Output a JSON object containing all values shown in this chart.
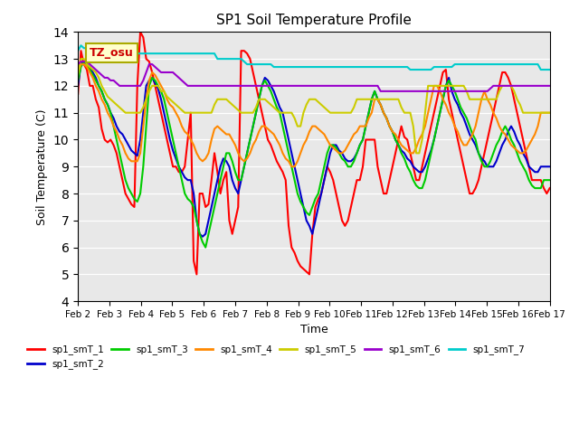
{
  "title": "SP1 Soil Temperature Profile",
  "xlabel": "Time",
  "ylabel": "Soil Temperature (C)",
  "ylim": [
    4.0,
    14.0
  ],
  "yticks": [
    4.0,
    5.0,
    6.0,
    7.0,
    8.0,
    9.0,
    10.0,
    11.0,
    12.0,
    13.0,
    14.0
  ],
  "xtick_labels": [
    "Feb 2",
    "Feb 3",
    "Feb 4",
    "Feb 5",
    "Feb 6",
    "Feb 7",
    "Feb 8",
    "Feb 9",
    "Feb 10",
    "Feb 11",
    "Feb 12",
    "Feb 13",
    "Feb 14",
    "Feb 15",
    "Feb 16",
    "Feb 17"
  ],
  "annotation_text": "TZ_osu",
  "annotation_color": "#cc0000",
  "annotation_bg": "#ffffcc",
  "annotation_border": "#aaaa00",
  "colors": {
    "sp1_smT_1": "#ff0000",
    "sp1_smT_2": "#0000cc",
    "sp1_smT_3": "#00cc00",
    "sp1_smT_4": "#ff8800",
    "sp1_smT_5": "#cccc00",
    "sp1_smT_6": "#9900cc",
    "sp1_smT_7": "#00cccc"
  },
  "bg_color": "#e8e8e8",
  "linewidth": 1.5,
  "n_points": 160,
  "series": {
    "sp1_smT_1": [
      11.7,
      13.3,
      12.8,
      12.6,
      12.0,
      12.0,
      11.5,
      11.2,
      10.4,
      10.0,
      9.9,
      10.0,
      9.8,
      9.5,
      9.0,
      8.5,
      8.0,
      7.8,
      7.6,
      7.5,
      12.0,
      14.0,
      13.8,
      13.0,
      12.9,
      12.5,
      12.0,
      11.5,
      11.0,
      10.5,
      10.0,
      9.5,
      9.0,
      9.0,
      8.8,
      8.8,
      9.0,
      10.0,
      11.0,
      5.5,
      5.0,
      8.0,
      8.0,
      7.5,
      7.6,
      8.5,
      9.5,
      8.8,
      8.0,
      8.5,
      8.8,
      7.0,
      6.5,
      7.0,
      7.5,
      13.3,
      13.3,
      13.2,
      13.0,
      12.5,
      12.0,
      11.5,
      11.0,
      10.5,
      10.0,
      9.8,
      9.5,
      9.2,
      9.0,
      8.8,
      8.5,
      6.8,
      6.0,
      5.8,
      5.5,
      5.3,
      5.2,
      5.1,
      5.0,
      6.5,
      7.5,
      7.8,
      8.0,
      8.5,
      9.0,
      8.8,
      8.5,
      8.0,
      7.5,
      7.0,
      6.8,
      7.0,
      7.5,
      8.0,
      8.5,
      8.5,
      9.0,
      10.0,
      10.0,
      10.0,
      10.0,
      9.0,
      8.5,
      8.0,
      8.0,
      8.5,
      9.0,
      9.5,
      10.0,
      10.5,
      10.1,
      10.0,
      9.5,
      9.0,
      8.5,
      8.5,
      9.0,
      9.5,
      10.0,
      10.5,
      11.0,
      11.5,
      12.0,
      12.5,
      12.6,
      11.5,
      11.0,
      10.5,
      10.0,
      9.5,
      9.0,
      8.5,
      8.0,
      8.0,
      8.2,
      8.5,
      9.0,
      9.5,
      10.0,
      10.5,
      11.0,
      11.5,
      12.0,
      12.5,
      12.5,
      12.3,
      12.0,
      11.5,
      11.0,
      10.5,
      10.0,
      9.5,
      9.0,
      8.5,
      8.5,
      8.5,
      8.5,
      8.2,
      8.0,
      8.2
    ],
    "sp1_smT_2": [
      12.0,
      12.8,
      12.9,
      12.8,
      12.7,
      12.5,
      12.3,
      12.0,
      11.8,
      11.5,
      11.3,
      11.0,
      10.8,
      10.5,
      10.3,
      10.2,
      10.0,
      9.8,
      9.6,
      9.5,
      9.4,
      10.0,
      11.0,
      12.0,
      12.2,
      12.3,
      12.1,
      11.9,
      11.5,
      11.0,
      10.5,
      10.0,
      9.6,
      9.3,
      9.0,
      8.8,
      8.6,
      8.5,
      8.5,
      8.0,
      7.0,
      6.5,
      6.4,
      6.5,
      7.0,
      7.5,
      8.0,
      8.5,
      9.0,
      9.3,
      9.2,
      9.0,
      8.5,
      8.2,
      8.0,
      8.5,
      9.0,
      9.5,
      10.0,
      10.5,
      11.0,
      11.5,
      12.0,
      12.3,
      12.2,
      12.0,
      11.8,
      11.5,
      11.2,
      11.0,
      10.5,
      10.0,
      9.5,
      9.0,
      8.5,
      8.0,
      7.5,
      7.0,
      6.8,
      6.5,
      7.0,
      7.5,
      8.0,
      8.5,
      9.0,
      9.5,
      9.8,
      9.8,
      9.6,
      9.5,
      9.3,
      9.2,
      9.2,
      9.3,
      9.5,
      9.8,
      10.0,
      10.5,
      11.0,
      11.5,
      11.8,
      11.5,
      11.3,
      11.0,
      10.8,
      10.5,
      10.3,
      10.0,
      9.8,
      9.6,
      9.5,
      9.3,
      9.2,
      9.0,
      8.9,
      8.8,
      8.8,
      9.0,
      9.3,
      9.6,
      10.0,
      10.5,
      11.0,
      11.5,
      12.0,
      12.3,
      11.8,
      11.5,
      11.3,
      11.0,
      10.8,
      10.5,
      10.2,
      10.0,
      9.8,
      9.5,
      9.3,
      9.2,
      9.0,
      9.0,
      9.0,
      9.2,
      9.5,
      9.8,
      10.0,
      10.3,
      10.5,
      10.3,
      10.0,
      9.8,
      9.5,
      9.3,
      9.0,
      8.9,
      8.8,
      8.8,
      9.0,
      9.0,
      9.0,
      9.0
    ],
    "sp1_smT_3": [
      12.2,
      12.7,
      12.9,
      12.8,
      12.6,
      12.4,
      12.2,
      12.0,
      11.8,
      11.5,
      11.3,
      11.0,
      10.5,
      10.0,
      9.5,
      9.0,
      8.5,
      8.2,
      8.0,
      7.8,
      7.7,
      8.0,
      9.0,
      10.5,
      12.0,
      12.3,
      12.2,
      12.0,
      11.8,
      11.5,
      11.0,
      10.5,
      10.0,
      9.5,
      9.0,
      8.5,
      8.0,
      7.8,
      7.7,
      7.5,
      7.0,
      6.5,
      6.2,
      6.0,
      6.5,
      7.0,
      7.5,
      8.0,
      8.5,
      9.0,
      9.5,
      9.5,
      9.2,
      8.8,
      8.5,
      8.5,
      9.0,
      9.5,
      10.0,
      10.5,
      11.0,
      11.5,
      12.0,
      12.2,
      12.0,
      11.8,
      11.5,
      11.2,
      11.0,
      10.5,
      10.0,
      9.5,
      9.0,
      8.5,
      8.0,
      7.7,
      7.5,
      7.3,
      7.2,
      7.5,
      7.8,
      8.0,
      8.5,
      9.0,
      9.5,
      9.8,
      9.8,
      9.7,
      9.5,
      9.3,
      9.2,
      9.0,
      9.0,
      9.2,
      9.5,
      9.8,
      10.0,
      10.5,
      11.0,
      11.5,
      11.8,
      11.5,
      11.3,
      11.0,
      10.8,
      10.5,
      10.3,
      10.0,
      9.8,
      9.5,
      9.3,
      9.0,
      8.8,
      8.5,
      8.3,
      8.2,
      8.2,
      8.5,
      9.0,
      9.5,
      10.0,
      10.5,
      11.0,
      11.5,
      12.0,
      12.2,
      12.0,
      11.8,
      11.5,
      11.2,
      11.0,
      10.8,
      10.5,
      10.2,
      10.0,
      9.5,
      9.2,
      9.0,
      9.0,
      9.2,
      9.5,
      9.8,
      10.0,
      10.3,
      10.5,
      10.3,
      10.0,
      9.8,
      9.5,
      9.2,
      9.0,
      8.8,
      8.5,
      8.3,
      8.2,
      8.2,
      8.2,
      8.5,
      8.5,
      8.5
    ],
    "sp1_smT_4": [
      12.5,
      12.8,
      12.8,
      12.7,
      12.5,
      12.3,
      12.0,
      11.8,
      11.5,
      11.3,
      11.0,
      10.8,
      10.5,
      10.3,
      10.0,
      9.8,
      9.5,
      9.3,
      9.2,
      9.2,
      9.2,
      9.5,
      10.5,
      11.5,
      12.2,
      12.5,
      12.4,
      12.2,
      12.0,
      11.8,
      11.5,
      11.3,
      11.2,
      11.0,
      10.8,
      10.5,
      10.3,
      10.2,
      10.0,
      9.8,
      9.5,
      9.3,
      9.2,
      9.3,
      9.5,
      10.0,
      10.4,
      10.5,
      10.4,
      10.3,
      10.2,
      10.2,
      10.0,
      9.8,
      9.5,
      9.3,
      9.2,
      9.3,
      9.5,
      9.8,
      10.0,
      10.3,
      10.5,
      10.5,
      10.4,
      10.3,
      10.2,
      10.0,
      9.8,
      9.5,
      9.3,
      9.2,
      9.0,
      9.0,
      9.2,
      9.5,
      9.8,
      10.0,
      10.3,
      10.5,
      10.5,
      10.4,
      10.3,
      10.2,
      10.0,
      9.8,
      9.7,
      9.6,
      9.5,
      9.5,
      9.6,
      9.8,
      10.0,
      10.2,
      10.3,
      10.5,
      10.5,
      10.5,
      10.8,
      11.0,
      11.5,
      11.5,
      11.3,
      11.0,
      10.8,
      10.5,
      10.3,
      10.2,
      10.0,
      9.8,
      9.7,
      9.6,
      9.5,
      9.5,
      9.7,
      10.0,
      10.2,
      10.5,
      11.0,
      11.5,
      12.0,
      12.0,
      11.8,
      11.5,
      11.3,
      11.0,
      10.8,
      10.5,
      10.3,
      10.0,
      9.8,
      9.8,
      10.0,
      10.2,
      10.5,
      11.0,
      11.5,
      11.8,
      11.5,
      11.3,
      11.0,
      10.8,
      10.5,
      10.3,
      10.2,
      10.0,
      9.8,
      9.7,
      9.6,
      9.5,
      9.5,
      9.6,
      9.8,
      10.0,
      10.2,
      10.5,
      11.0,
      11.0,
      11.0,
      11.0
    ],
    "sp1_smT_5": [
      12.4,
      13.0,
      13.0,
      12.8,
      12.7,
      12.6,
      12.5,
      12.3,
      12.0,
      11.8,
      11.6,
      11.5,
      11.4,
      11.3,
      11.2,
      11.1,
      11.0,
      11.0,
      11.0,
      11.0,
      11.0,
      11.0,
      11.2,
      11.5,
      11.8,
      12.0,
      12.0,
      12.0,
      11.8,
      11.8,
      11.6,
      11.5,
      11.4,
      11.3,
      11.2,
      11.1,
      11.0,
      11.0,
      11.0,
      11.0,
      11.0,
      11.0,
      11.0,
      11.0,
      11.0,
      11.0,
      11.3,
      11.5,
      11.5,
      11.5,
      11.5,
      11.4,
      11.3,
      11.2,
      11.1,
      11.0,
      11.0,
      11.0,
      11.0,
      11.0,
      11.2,
      11.5,
      11.5,
      11.5,
      11.4,
      11.3,
      11.2,
      11.1,
      11.0,
      11.0,
      11.0,
      11.0,
      11.0,
      10.8,
      10.5,
      10.5,
      11.0,
      11.3,
      11.5,
      11.5,
      11.5,
      11.4,
      11.3,
      11.2,
      11.1,
      11.0,
      11.0,
      11.0,
      11.0,
      11.0,
      11.0,
      11.0,
      11.0,
      11.2,
      11.5,
      11.5,
      11.5,
      11.5,
      11.5,
      11.5,
      11.5,
      11.5,
      11.5,
      11.5,
      11.5,
      11.5,
      11.5,
      11.5,
      11.5,
      11.2,
      11.0,
      11.0,
      11.0,
      10.5,
      9.5,
      9.5,
      10.0,
      11.0,
      12.0,
      12.0,
      12.0,
      12.0,
      12.0,
      12.0,
      12.0,
      12.0,
      12.0,
      12.0,
      12.0,
      12.0,
      12.0,
      11.8,
      11.5,
      11.5,
      11.5,
      11.5,
      11.5,
      11.5,
      11.5,
      11.5,
      11.5,
      11.5,
      11.8,
      12.0,
      12.0,
      12.0,
      12.0,
      11.8,
      11.5,
      11.3,
      11.0,
      11.0,
      11.0,
      11.0,
      11.0,
      11.0,
      11.0,
      11.0,
      11.0,
      11.0
    ],
    "sp1_smT_6": [
      12.8,
      12.9,
      12.9,
      12.9,
      12.8,
      12.7,
      12.6,
      12.5,
      12.4,
      12.3,
      12.3,
      12.2,
      12.2,
      12.1,
      12.0,
      12.0,
      12.0,
      12.0,
      12.0,
      12.0,
      12.0,
      12.0,
      12.2,
      12.5,
      12.8,
      12.8,
      12.7,
      12.6,
      12.5,
      12.5,
      12.5,
      12.5,
      12.5,
      12.4,
      12.3,
      12.2,
      12.1,
      12.0,
      12.0,
      12.0,
      12.0,
      12.0,
      12.0,
      12.0,
      12.0,
      12.0,
      12.0,
      12.0,
      12.0,
      12.0,
      12.0,
      12.0,
      12.0,
      12.0,
      12.0,
      12.0,
      12.0,
      12.0,
      12.0,
      12.0,
      12.0,
      12.0,
      12.0,
      12.0,
      12.0,
      12.0,
      12.0,
      12.0,
      12.0,
      12.0,
      12.0,
      12.0,
      12.0,
      12.0,
      12.0,
      12.0,
      12.0,
      12.0,
      12.0,
      12.0,
      12.0,
      12.0,
      12.0,
      12.0,
      12.0,
      12.0,
      12.0,
      12.0,
      12.0,
      12.0,
      12.0,
      12.0,
      12.0,
      12.0,
      12.0,
      12.0,
      12.0,
      12.0,
      12.0,
      12.0,
      12.0,
      12.0,
      11.8,
      11.8,
      11.8,
      11.8,
      11.8,
      11.8,
      11.8,
      11.8,
      11.8,
      11.8,
      11.8,
      11.8,
      11.8,
      11.8,
      11.8,
      11.8,
      11.8,
      11.8,
      11.8,
      11.8,
      11.8,
      11.8,
      11.8,
      11.8,
      11.8,
      11.8,
      11.8,
      11.8,
      11.8,
      11.8,
      11.8,
      11.8,
      11.8,
      11.8,
      11.8,
      11.8,
      11.8,
      11.9,
      12.0,
      12.0,
      12.0,
      12.0,
      12.0,
      12.0,
      12.0,
      12.0,
      12.0,
      12.0,
      12.0,
      12.0,
      12.0,
      12.0,
      12.0,
      12.0,
      12.0,
      12.0,
      12.0,
      12.0
    ],
    "sp1_smT_7": [
      13.3,
      13.5,
      13.4,
      13.4,
      13.3,
      13.3,
      13.3,
      13.3,
      13.3,
      13.3,
      13.2,
      13.2,
      13.2,
      13.2,
      13.2,
      13.2,
      13.2,
      13.2,
      13.2,
      13.2,
      13.2,
      13.2,
      13.2,
      13.2,
      13.2,
      13.2,
      13.2,
      13.2,
      13.2,
      13.2,
      13.2,
      13.2,
      13.2,
      13.2,
      13.2,
      13.2,
      13.2,
      13.2,
      13.2,
      13.2,
      13.2,
      13.2,
      13.2,
      13.2,
      13.2,
      13.2,
      13.2,
      13.0,
      13.0,
      13.0,
      13.0,
      13.0,
      13.0,
      13.0,
      13.0,
      13.0,
      12.9,
      12.8,
      12.8,
      12.8,
      12.8,
      12.8,
      12.8,
      12.8,
      12.8,
      12.8,
      12.7,
      12.7,
      12.7,
      12.7,
      12.7,
      12.7,
      12.7,
      12.7,
      12.7,
      12.7,
      12.7,
      12.7,
      12.7,
      12.7,
      12.7,
      12.7,
      12.7,
      12.7,
      12.7,
      12.7,
      12.7,
      12.7,
      12.7,
      12.7,
      12.7,
      12.7,
      12.7,
      12.7,
      12.7,
      12.7,
      12.7,
      12.7,
      12.7,
      12.7,
      12.7,
      12.7,
      12.7,
      12.7,
      12.7,
      12.7,
      12.7,
      12.7,
      12.7,
      12.7,
      12.7,
      12.7,
      12.6,
      12.6,
      12.6,
      12.6,
      12.6,
      12.6,
      12.6,
      12.6,
      12.7,
      12.7,
      12.7,
      12.7,
      12.7,
      12.7,
      12.7,
      12.8,
      12.8,
      12.8,
      12.8,
      12.8,
      12.8,
      12.8,
      12.8,
      12.8,
      12.8,
      12.8,
      12.8,
      12.8,
      12.8,
      12.8,
      12.8,
      12.8,
      12.8,
      12.8,
      12.8,
      12.8,
      12.8,
      12.8,
      12.8,
      12.8,
      12.8,
      12.8,
      12.8,
      12.8,
      12.6,
      12.6,
      12.6,
      12.6
    ]
  }
}
